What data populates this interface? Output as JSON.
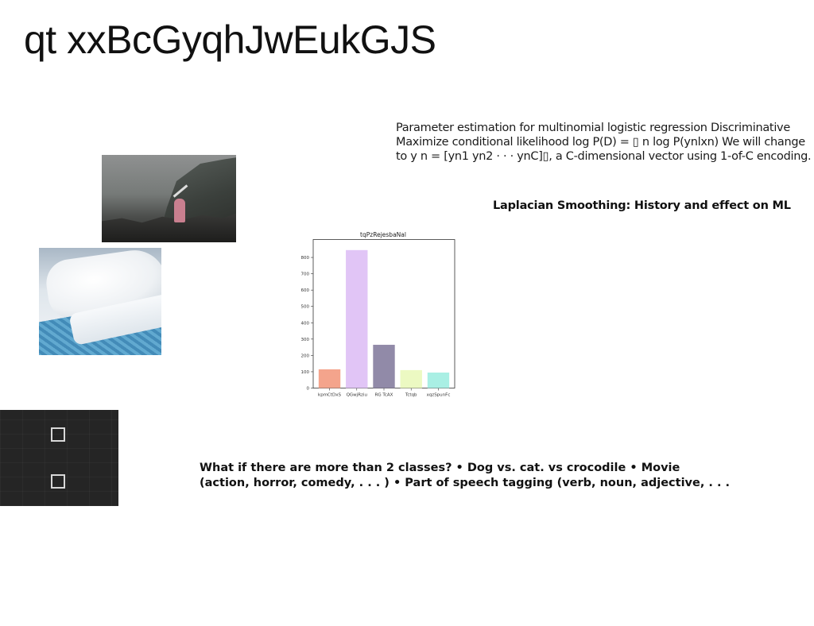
{
  "page": {
    "title": "qt xxBcGyqhJwEukGJS",
    "paragraph_lines": [
      "Parameter estimation for multinomial logistic regression Discriminative",
      "Maximize conditional likelihood log P(D) = ▯ n log P(ynlxn) We will change",
      "to y n = [yn1 yn2 · · · ynC]▯, a C-dimensional vector using 1-of-C encoding."
    ],
    "subtitle": "Laplacian Smoothing: History and effect on ML",
    "bullet_lines": [
      "What if there are more than 2 classes? • Dog vs. cat. vs crocodile • Movie",
      "(action, horror, comedy, . . . ) • Part of speech tagging (verb, noun, adjective, . . ."
    ]
  },
  "chart_data": {
    "type": "bar",
    "title": "tqPzRejesbaNal",
    "categories": [
      "kpmCtDxS",
      "QGwjRziu",
      "RG TcAX",
      "Tctqb",
      "xqzSpunFc"
    ],
    "values": [
      115,
      845,
      265,
      110,
      95
    ],
    "colors": [
      "#f4a48c",
      "#e1c5f6",
      "#918aa8",
      "#ecf9c2",
      "#a9efe4"
    ],
    "ylim": [
      0,
      900
    ],
    "yticks": [
      0,
      100,
      200,
      300,
      400,
      500,
      600,
      700,
      800
    ],
    "xlabel": "",
    "ylabel": "",
    "grid": false
  }
}
